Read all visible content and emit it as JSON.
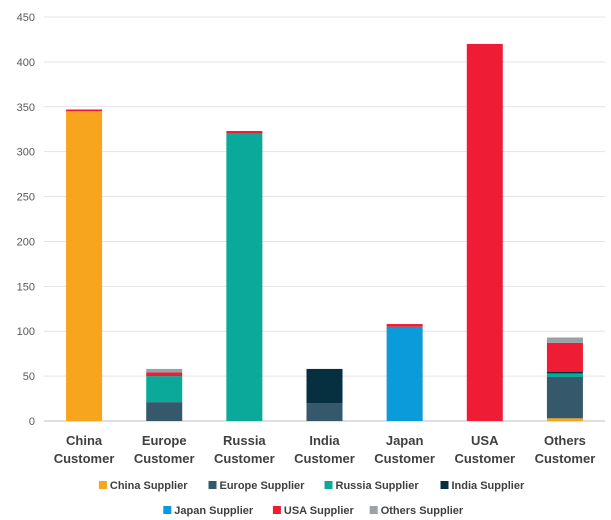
{
  "chart_data": {
    "type": "bar",
    "stacked": true,
    "categories": [
      [
        "China",
        "Customer"
      ],
      [
        "Europe",
        "Customer"
      ],
      [
        "Russia",
        "Customer"
      ],
      [
        "India",
        "Customer"
      ],
      [
        "Japan",
        "Customer"
      ],
      [
        "USA",
        "Customer"
      ],
      [
        "Others",
        "Customer"
      ]
    ],
    "series": [
      {
        "name": "China Supplier",
        "color": "#F7A51E",
        "values": [
          345,
          0,
          0,
          0,
          0,
          0,
          3
        ]
      },
      {
        "name": "Europe Supplier",
        "color": "#35586B",
        "values": [
          0,
          21,
          0,
          20,
          0,
          0,
          46
        ]
      },
      {
        "name": "Russia Supplier",
        "color": "#0BA99A",
        "values": [
          0,
          29,
          320,
          0,
          0,
          0,
          4
        ]
      },
      {
        "name": "India Supplier",
        "color": "#062F3F",
        "values": [
          0,
          0,
          0,
          38,
          0,
          0,
          2
        ]
      },
      {
        "name": "Japan Supplier",
        "color": "#0B9ADA",
        "values": [
          0,
          0,
          0,
          0,
          105,
          0,
          0
        ]
      },
      {
        "name": "USA Supplier",
        "color": "#EE1C35",
        "values": [
          2,
          4,
          3,
          0,
          3,
          420,
          32
        ]
      },
      {
        "name": "Others Supplier",
        "color": "#9AA2A7",
        "values": [
          0,
          4,
          0,
          0,
          0,
          0,
          6
        ]
      }
    ],
    "yticks": [
      0,
      50,
      100,
      150,
      200,
      250,
      300,
      350,
      400,
      450
    ],
    "ylim": [
      0,
      450
    ],
    "grid": true,
    "legend_position": "bottom",
    "title": "",
    "xlabel": "",
    "ylabel": ""
  }
}
